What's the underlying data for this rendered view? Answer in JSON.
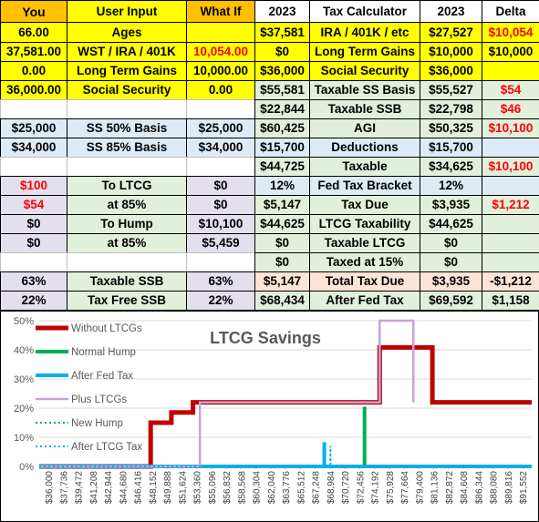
{
  "table": {
    "rows": [
      [
        "You",
        "User Input",
        "What If",
        "2023",
        "Tax Calculator",
        "2023",
        "Delta"
      ],
      [
        "66.00",
        "Ages",
        "",
        "$37,581",
        "IRA / 401K / etc",
        "$27,527",
        "$10,054"
      ],
      [
        "37,581.00",
        "WST / IRA / 401K",
        "10,054.00",
        "$0",
        "Long Term Gains",
        "$10,000",
        "$10,000"
      ],
      [
        "0.00",
        "Long Term Gains",
        "10,000.00",
        "$36,000",
        "Social Security",
        "$36,000",
        ""
      ],
      [
        "36,000.00",
        "Social Security",
        "0.00",
        "$55,581",
        "Taxable SS Basis",
        "$55,527",
        "$54"
      ],
      [
        "",
        "",
        "",
        "$22,844",
        "Taxable SSB",
        "$22,798",
        "$46"
      ],
      [
        "$25,000",
        "SS 50% Basis",
        "$25,000",
        "$60,425",
        "AGI",
        "$50,325",
        "$10,100"
      ],
      [
        "$34,000",
        "SS 85% Basis",
        "$34,000",
        "$15,700",
        "Deductions",
        "$15,700",
        ""
      ],
      [
        "",
        "",
        "",
        "$44,725",
        "Taxable",
        "$34,625",
        "$10,100"
      ],
      [
        "$100",
        "To LTCG",
        "$0",
        "12%",
        "Fed Tax Bracket",
        "12%",
        ""
      ],
      [
        "$54",
        "at 85%",
        "$0",
        "$5,147",
        "Tax Due",
        "$3,935",
        "$1,212"
      ],
      [
        "$0",
        "To Hump",
        "$10,100",
        "$44,625",
        "LTCG Taxability",
        "$44,625",
        ""
      ],
      [
        "$0",
        "at 85%",
        "$5,459",
        "$0",
        "Taxable LTCG",
        "$0",
        ""
      ],
      [
        "",
        "",
        "",
        "$0",
        "Taxed at 15%",
        "$0",
        ""
      ],
      [
        "63%",
        "Taxable SSB",
        "63%",
        "$5,147",
        "Total Tax Due",
        "$3,935",
        "-$1,212"
      ],
      [
        "22%",
        "Tax Free SSB",
        "22%",
        "$68,434",
        "After Fed Tax",
        "$69,592",
        "$1,158"
      ]
    ],
    "row_fills": [
      [
        "#ffc000",
        "#ffff00",
        "#ffc000",
        "#ffffff",
        "#ffffff",
        "#ffffff",
        "#ffffff"
      ],
      [
        "#ffff00",
        "#ffff00",
        "#ffff00",
        "#ffff00",
        "#ffff00",
        "#ffff00",
        "#ffff00"
      ],
      [
        "#ffff00",
        "#ffff00",
        "#ffff00",
        "#ffff00",
        "#ffff00",
        "#ffff00",
        "#ffff00"
      ],
      [
        "#ffff00",
        "#ffff00",
        "#ffff00",
        "#ffff00",
        "#ffff00",
        "#ffff00",
        "#ffff00"
      ],
      [
        "#ffff00",
        "#ffff00",
        "#ffff00",
        "#e2efda",
        "#e2efda",
        "#e2efda",
        "#e2efda"
      ],
      [
        "#ffffff",
        "#ffffff",
        "#ffffff",
        "#e2efda",
        "#e2efda",
        "#e2efda",
        "#e2efda"
      ],
      [
        "#ddebf7",
        "#ddebf7",
        "#ddebf7",
        "#e2efda",
        "#e2efda",
        "#e2efda",
        "#e2efda"
      ],
      [
        "#ddebf7",
        "#ddebf7",
        "#ddebf7",
        "#ddebf7",
        "#ddebf7",
        "#ddebf7",
        "#ddebf7"
      ],
      [
        "#ffffff",
        "#ffffff",
        "#ffffff",
        "#e2efda",
        "#e2efda",
        "#e2efda",
        "#e2efda"
      ],
      [
        "#e4dfec",
        "#e2efda",
        "#e4dfec",
        "#ddebf7",
        "#ddebf7",
        "#ddebf7",
        "#ddebf7"
      ],
      [
        "#e4dfec",
        "#e2efda",
        "#e4dfec",
        "#e2efda",
        "#e2efda",
        "#e2efda",
        "#e2efda"
      ],
      [
        "#e4dfec",
        "#e2efda",
        "#e4dfec",
        "#e2efda",
        "#e2efda",
        "#e2efda",
        "#e2efda"
      ],
      [
        "#e4dfec",
        "#e2efda",
        "#e4dfec",
        "#e2efda",
        "#e2efda",
        "#e2efda",
        "#e2efda"
      ],
      [
        "#ffffff",
        "#ffffff",
        "#ffffff",
        "#e2efda",
        "#e2efda",
        "#e2efda",
        "#e2efda"
      ],
      [
        "#e4dfec",
        "#e2efda",
        "#e4dfec",
        "#fce4d6",
        "#fce4d6",
        "#fce4d6",
        "#fce4d6"
      ],
      [
        "#e4dfec",
        "#e2efda",
        "#e4dfec",
        "#e2efda",
        "#e2efda",
        "#e2efda",
        "#e2efda"
      ]
    ],
    "red_cells": [
      "1-6",
      "2-2",
      "9-0",
      "10-0",
      "10-6",
      "6-6",
      "8-6",
      "4-6",
      "5-6"
    ],
    "text_colors": {
      "red": "#ff0000",
      "normal": "#000000"
    }
  },
  "chart_data": {
    "type": "line",
    "title": "LTCG Savings",
    "xlabel": "",
    "ylabel": "",
    "ylim": [
      0,
      0.5
    ],
    "yticks": [
      "0%",
      "10%",
      "20%",
      "30%",
      "40%",
      "50%"
    ],
    "xticks": [
      "$36,000",
      "$37,736",
      "$39,472",
      "$41,208",
      "$42,944",
      "$44,680",
      "$46,416",
      "$48,152",
      "$49,888",
      "$51,624",
      "$53,360",
      "$55,096",
      "$56,832",
      "$58,568",
      "$60,304",
      "$62,040",
      "$63,776",
      "$65,512",
      "$67,248",
      "$68,984",
      "$70,720",
      "$72,456",
      "$74,192",
      "$75,928",
      "$77,664",
      "$79,400",
      "$81,136",
      "$82,872",
      "$84,608",
      "$86,344",
      "$88,080",
      "$89,816",
      "$91,552"
    ],
    "xlim": [
      36000,
      93000
    ],
    "grid": "horizontal",
    "legend_position": "top-left",
    "series": [
      {
        "name": "Without LTCGs",
        "color": "#c00000",
        "style": "solid",
        "width": 5,
        "points": [
          [
            36000,
            0
          ],
          [
            48900,
            0
          ],
          [
            48900,
            0.15
          ],
          [
            51300,
            0.15
          ],
          [
            51300,
            0.185
          ],
          [
            53800,
            0.185
          ],
          [
            53800,
            0.22
          ],
          [
            75400,
            0.22
          ],
          [
            75400,
            0.408
          ],
          [
            81500,
            0.408
          ],
          [
            81500,
            0.22
          ],
          [
            93000,
            0.22
          ]
        ]
      },
      {
        "name": "Normal Hump",
        "color": "#00b050",
        "style": "solid",
        "width": 4,
        "points": [
          [
            36000,
            0
          ],
          [
            73650,
            0
          ],
          [
            73650,
            0.205
          ],
          [
            73650,
            0
          ],
          [
            93000,
            0
          ]
        ]
      },
      {
        "name": "After Fed Tax",
        "color": "#00b0f0",
        "style": "solid",
        "width": 4,
        "points": [
          [
            36000,
            0
          ],
          [
            69000,
            0
          ],
          [
            69000,
            0.083
          ],
          [
            69000,
            0
          ],
          [
            93000,
            0
          ]
        ]
      },
      {
        "name": "Plus LTCGs",
        "color": "#c9a0dc",
        "style": "solid",
        "width": 2.5,
        "points": [
          [
            36000,
            0
          ],
          [
            54600,
            0
          ],
          [
            54600,
            0.22
          ],
          [
            75400,
            0.22
          ],
          [
            75400,
            0.5
          ],
          [
            79300,
            0.5
          ],
          [
            79300,
            0.22
          ]
        ]
      },
      {
        "name": "New Hump",
        "color": "#00b050",
        "style": "dotted",
        "width": 2,
        "points": [
          [
            36000,
            0
          ],
          [
            93000,
            0
          ]
        ]
      },
      {
        "name": "After LTCG Tax",
        "color": "#00b0f0",
        "style": "dotted",
        "width": 2,
        "points": [
          [
            36000,
            0
          ],
          [
            69700,
            0
          ],
          [
            69700,
            0.07
          ],
          [
            69700,
            0
          ],
          [
            93000,
            0
          ]
        ]
      }
    ]
  }
}
